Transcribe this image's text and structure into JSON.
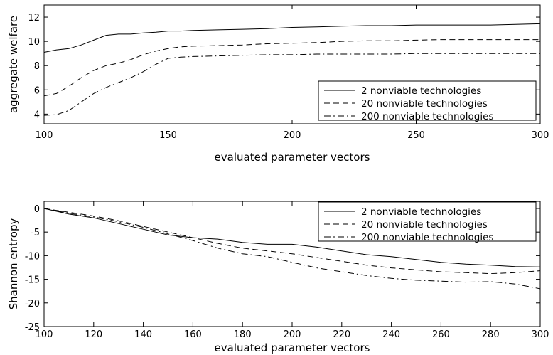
{
  "chart_data": [
    {
      "type": "line",
      "title": "",
      "xlabel": "evaluated parameter vectors",
      "ylabel": "aggregate welfare",
      "xlim": [
        100,
        300
      ],
      "ylim": [
        3.2,
        13
      ],
      "xticks": [
        100,
        150,
        200,
        250,
        300
      ],
      "yticks": [
        4,
        6,
        8,
        10,
        12
      ],
      "legend_position": "lower-right",
      "grid": false,
      "series": [
        {
          "name": "2 nonviable technologies",
          "style": "solid",
          "x": [
            100,
            105,
            110,
            115,
            120,
            125,
            130,
            135,
            140,
            145,
            150,
            155,
            160,
            170,
            180,
            190,
            200,
            210,
            220,
            230,
            240,
            250,
            260,
            270,
            280,
            290,
            300
          ],
          "y": [
            9.1,
            9.3,
            9.4,
            9.7,
            10.1,
            10.5,
            10.6,
            10.6,
            10.7,
            10.75,
            10.85,
            10.85,
            10.9,
            10.95,
            11.0,
            11.05,
            11.15,
            11.2,
            11.25,
            11.3,
            11.3,
            11.35,
            11.35,
            11.35,
            11.35,
            11.4,
            11.45
          ]
        },
        {
          "name": "20 nonviable technologies",
          "style": "dashed",
          "x": [
            100,
            105,
            110,
            115,
            120,
            125,
            130,
            135,
            140,
            145,
            150,
            155,
            160,
            170,
            180,
            190,
            200,
            210,
            220,
            230,
            240,
            250,
            260,
            270,
            280,
            290,
            300
          ],
          "y": [
            5.5,
            5.7,
            6.3,
            7.0,
            7.6,
            8.0,
            8.2,
            8.5,
            8.9,
            9.2,
            9.4,
            9.55,
            9.6,
            9.65,
            9.7,
            9.8,
            9.85,
            9.9,
            10.0,
            10.05,
            10.05,
            10.1,
            10.15,
            10.15,
            10.15,
            10.15,
            10.15
          ]
        },
        {
          "name": "200 nonviable technologies",
          "style": "dashdot",
          "x": [
            100,
            105,
            110,
            115,
            120,
            125,
            130,
            135,
            140,
            145,
            150,
            155,
            160,
            170,
            180,
            190,
            200,
            210,
            220,
            230,
            240,
            250,
            260,
            270,
            280,
            290,
            300
          ],
          "y": [
            3.9,
            3.95,
            4.3,
            5.0,
            5.7,
            6.2,
            6.6,
            7.0,
            7.5,
            8.1,
            8.6,
            8.7,
            8.75,
            8.8,
            8.85,
            8.9,
            8.9,
            8.95,
            8.95,
            8.95,
            8.95,
            9.0,
            9.0,
            9.0,
            9.0,
            9.0,
            9.0
          ]
        }
      ]
    },
    {
      "type": "line",
      "title": "",
      "xlabel": "evaluated parameter vectors",
      "ylabel": "Shannon entropy",
      "xlim": [
        100,
        300
      ],
      "ylim": [
        -25,
        1.5
      ],
      "xticks": [
        100,
        120,
        140,
        160,
        180,
        200,
        220,
        240,
        260,
        280,
        300
      ],
      "yticks": [
        0,
        -5,
        -10,
        -15,
        -20,
        -25
      ],
      "legend_position": "upper-right",
      "grid": false,
      "series": [
        {
          "name": "2 nonviable technologies",
          "style": "solid",
          "x": [
            100,
            110,
            120,
            130,
            140,
            150,
            160,
            170,
            180,
            190,
            200,
            210,
            220,
            230,
            240,
            250,
            260,
            270,
            280,
            290,
            300
          ],
          "y": [
            0,
            -1.2,
            -2.0,
            -3.2,
            -4.4,
            -5.6,
            -6.2,
            -6.5,
            -7.2,
            -7.6,
            -7.6,
            -8.2,
            -9.0,
            -9.8,
            -10.2,
            -10.8,
            -11.4,
            -11.8,
            -12.0,
            -12.3,
            -12.4
          ]
        },
        {
          "name": "20 nonviable technologies",
          "style": "dashed",
          "x": [
            100,
            110,
            120,
            130,
            140,
            150,
            160,
            170,
            180,
            190,
            200,
            210,
            220,
            230,
            240,
            250,
            260,
            270,
            280,
            290,
            300
          ],
          "y": [
            0,
            -0.8,
            -1.6,
            -2.6,
            -3.8,
            -5.0,
            -6.2,
            -7.4,
            -8.4,
            -9.0,
            -9.6,
            -10.4,
            -11.2,
            -12.0,
            -12.6,
            -13.0,
            -13.4,
            -13.6,
            -13.8,
            -13.6,
            -13.2
          ]
        },
        {
          "name": "200 nonviable technologies",
          "style": "dashdot",
          "x": [
            100,
            110,
            120,
            130,
            140,
            150,
            160,
            170,
            180,
            190,
            200,
            210,
            220,
            230,
            240,
            250,
            260,
            270,
            280,
            290,
            300
          ],
          "y": [
            0,
            -1.0,
            -1.8,
            -2.8,
            -4.0,
            -5.4,
            -6.8,
            -8.4,
            -9.6,
            -10.2,
            -11.4,
            -12.6,
            -13.4,
            -14.2,
            -14.8,
            -15.2,
            -15.4,
            -15.6,
            -15.5,
            -16.0,
            -17.0
          ]
        }
      ]
    }
  ]
}
